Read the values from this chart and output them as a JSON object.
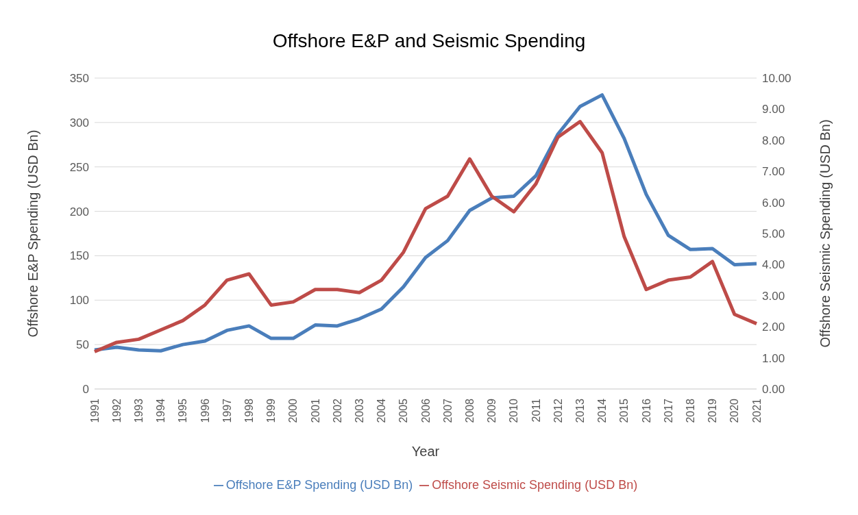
{
  "chart_data": {
    "type": "line",
    "title": "Offshore E&P and Seismic Spending",
    "xlabel": "Year",
    "ylabel": "Offshore E&P Spending (USD Bn)",
    "y2label": "Offshore Seismic Spending (USD Bn)",
    "categories": [
      "1991",
      "1992",
      "1993",
      "1994",
      "1995",
      "1996",
      "1997",
      "1998",
      "1999",
      "2000",
      "2001",
      "2002",
      "2003",
      "2004",
      "2005",
      "2006",
      "2007",
      "2008",
      "2009",
      "2010",
      "2011",
      "2012",
      "2013",
      "2014",
      "2015",
      "2016",
      "2017",
      "2018",
      "2019",
      "2020",
      "2021"
    ],
    "series": [
      {
        "name": "Offshore E&P Spending (USD Bn)",
        "color": "#4a7ebb",
        "values": [
          44,
          47,
          44,
          43,
          50,
          54,
          66,
          71,
          57,
          57,
          72,
          71,
          79,
          90,
          115,
          148,
          167,
          201,
          215,
          217,
          240,
          287,
          318,
          331,
          282,
          219,
          173,
          157,
          158,
          140,
          141
        ]
      },
      {
        "name": "Offshore Seismic Spending (USD Bn)",
        "color": "#be4b48",
        "axis": "y2",
        "values": [
          1.2,
          1.5,
          1.6,
          1.9,
          2.2,
          2.7,
          3.5,
          3.7,
          2.7,
          2.8,
          3.2,
          3.2,
          3.1,
          3.5,
          4.4,
          5.8,
          6.2,
          7.4,
          6.2,
          5.7,
          6.6,
          8.1,
          8.6,
          7.6,
          4.9,
          3.2,
          3.5,
          3.6,
          4.1,
          2.4,
          2.1
        ]
      }
    ],
    "ylim": [
      0,
      350
    ],
    "yticks": [
      0,
      50,
      100,
      150,
      200,
      250,
      300,
      350
    ],
    "y2lim": [
      0,
      10
    ],
    "y2ticks": [
      {
        "value": 0,
        "label": "0.00"
      },
      {
        "value": 1,
        "label": "1.00"
      },
      {
        "value": 2,
        "label": "2.00"
      },
      {
        "value": 3,
        "label": "3.00"
      },
      {
        "value": 4,
        "label": "4.00"
      },
      {
        "value": 5,
        "label": "5.00"
      },
      {
        "value": 6,
        "label": "6.00"
      },
      {
        "value": 7,
        "label": "7.00"
      },
      {
        "value": 8,
        "label": "8.00"
      },
      {
        "value": 9,
        "label": "9.00"
      },
      {
        "value": 10,
        "label": "10.00"
      }
    ],
    "grid": "y",
    "legend": "bottom",
    "marker": "none",
    "line_style": "solid"
  }
}
